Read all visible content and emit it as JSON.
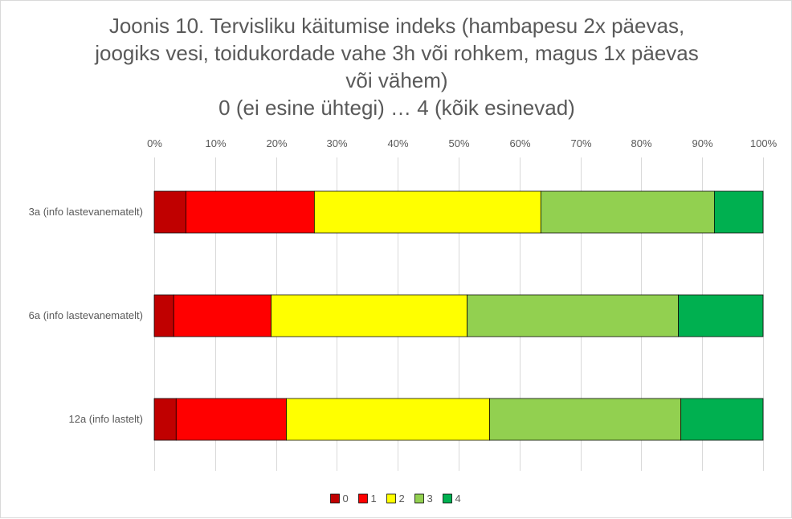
{
  "chart_data": {
    "type": "bar",
    "orientation": "horizontal",
    "stacked": "percent",
    "title_lines": [
      "Joonis 10. Tervisliku käitumise indeks (hambapesu 2x päevas,",
      "joogiks vesi, toidukordade vahe 3h või rohkem, magus 1x päevas",
      "või vähem)",
      "0 (ei esine ühtegi) … 4 (kõik esinevad)"
    ],
    "xlim": [
      0,
      100
    ],
    "x_ticks": [
      "0%",
      "10%",
      "20%",
      "30%",
      "40%",
      "50%",
      "60%",
      "70%",
      "80%",
      "90%",
      "100%"
    ],
    "categories": [
      "3a (info lastevanematelt)",
      "6a (info lastevanematelt)",
      "12a (info lastelt)"
    ],
    "series": [
      {
        "name": "0",
        "color": "#c00000",
        "values": [
          5.2,
          3.2,
          3.6
        ]
      },
      {
        "name": "1",
        "color": "#ff0000",
        "values": [
          21.1,
          16.0,
          18.1
        ]
      },
      {
        "name": "2",
        "color": "#ffff00",
        "values": [
          37.2,
          32.2,
          33.4
        ]
      },
      {
        "name": "3",
        "color": "#92d050",
        "values": [
          28.5,
          34.7,
          31.4
        ]
      },
      {
        "name": "4",
        "color": "#00b050",
        "values": [
          8.0,
          13.9,
          13.5
        ]
      }
    ],
    "grid": true,
    "legend_position": "bottom"
  }
}
